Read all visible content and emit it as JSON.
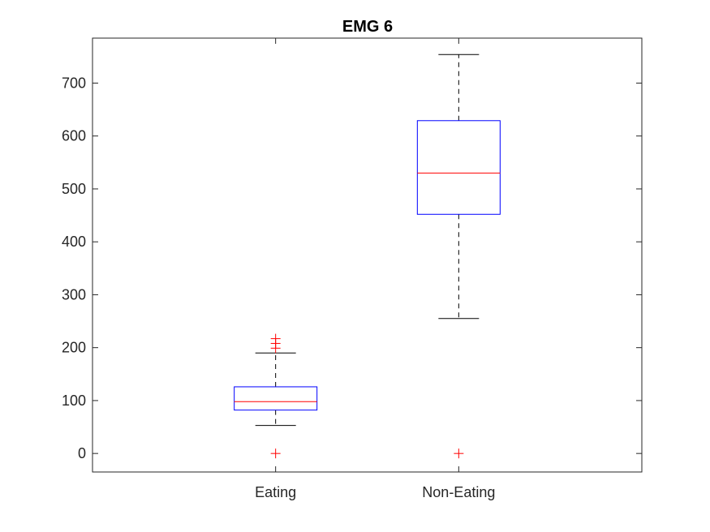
{
  "chart_data": {
    "type": "boxplot",
    "title": "EMG 6",
    "xlabel": "",
    "ylabel": "",
    "ylim": [
      -35,
      785
    ],
    "yticks": [
      0,
      100,
      200,
      300,
      400,
      500,
      600,
      700
    ],
    "grid": false,
    "categories": [
      "Eating",
      "Non-Eating"
    ],
    "boxes": [
      {
        "category": "Eating",
        "min": 53,
        "q1": 82,
        "median": 98,
        "q3": 126,
        "max": 190,
        "outliers": [
          0,
          199,
          208,
          217
        ]
      },
      {
        "category": "Non-Eating",
        "min": 255,
        "q1": 452,
        "median": 530,
        "q3": 629,
        "max": 754,
        "outliers": [
          0
        ]
      }
    ]
  },
  "colors": {
    "box": "#0000ff",
    "median": "#ff0000",
    "whisker": "#000000",
    "outlier": "#ff0000",
    "axes": "#262626"
  }
}
